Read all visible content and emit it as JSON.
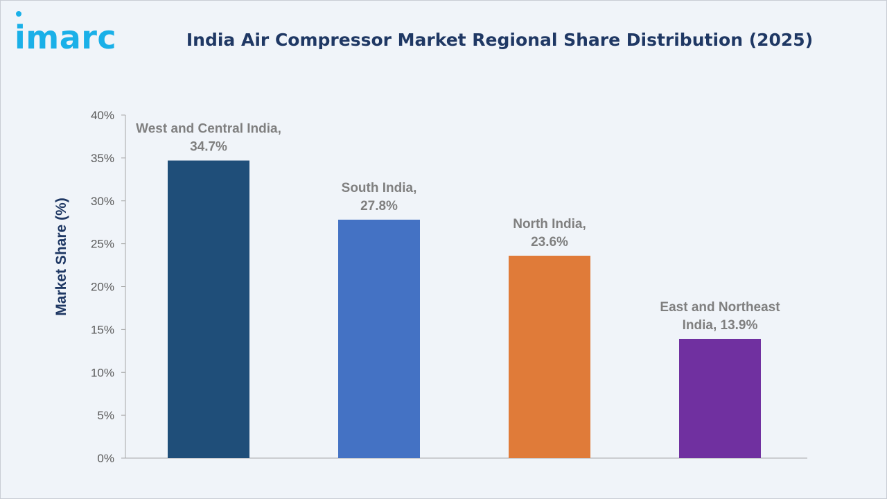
{
  "brand": {
    "logo_text": "imarc",
    "color": "#1ab0e8"
  },
  "chart_data": {
    "type": "bar",
    "title": "India Air Compressor Market Regional Share Distribution (2025)",
    "xlabel": "",
    "ylabel": "Market Share (%)",
    "ylim": [
      0,
      40
    ],
    "yticks": [
      "0%",
      "5%",
      "10%",
      "15%",
      "20%",
      "25%",
      "30%",
      "35%",
      "40%"
    ],
    "grid": false,
    "categories": [
      "West and Central India",
      "South India",
      "North India",
      "East and Northeast India"
    ],
    "values": [
      34.7,
      27.8,
      23.6,
      13.9
    ],
    "data_labels": [
      [
        "West and Central India,",
        "34.7%"
      ],
      [
        "South India,",
        "27.8%"
      ],
      [
        "North India,",
        "23.6%"
      ],
      [
        "East and Northeast",
        "India, 13.9%"
      ]
    ],
    "colors": [
      "#1f4e79",
      "#4472c4",
      "#e07b39",
      "#7030a0"
    ]
  }
}
